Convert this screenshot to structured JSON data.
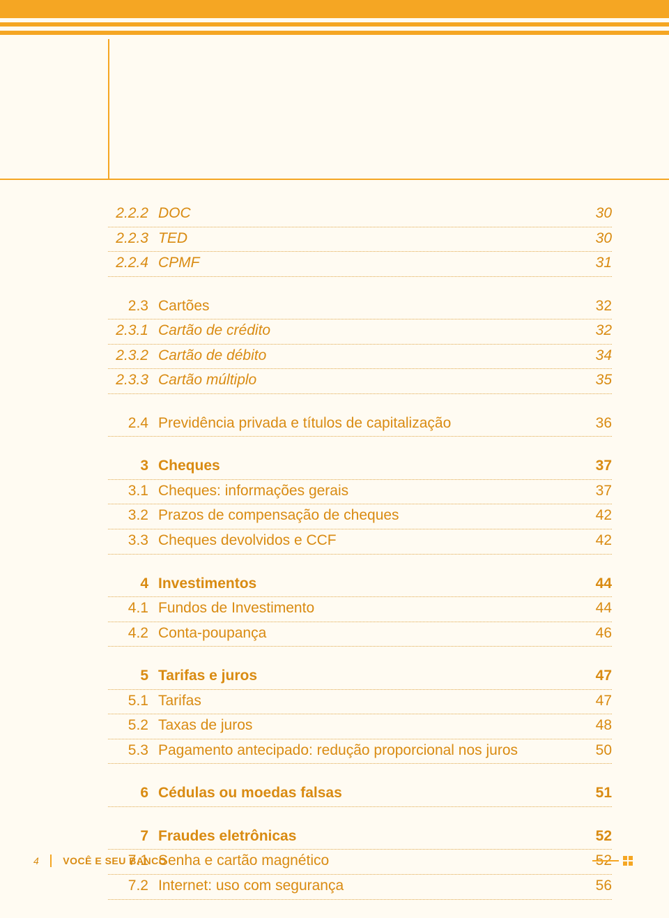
{
  "colors": {
    "accent": "#f5a623",
    "text": "#d98b12",
    "background": "#fffbf2"
  },
  "toc": {
    "groups": [
      [
        {
          "num": "2.2.2",
          "label": "DOC",
          "page": "30",
          "style": "italic"
        },
        {
          "num": "2.2.3",
          "label": "TED",
          "page": "30",
          "style": "italic"
        },
        {
          "num": "2.2.4",
          "label": "CPMF",
          "page": "31",
          "style": "italic"
        }
      ],
      [
        {
          "num": "2.3",
          "label": "Cartões",
          "page": "32",
          "style": "normal"
        },
        {
          "num": "2.3.1",
          "label": "Cartão de crédito",
          "page": "32",
          "style": "italic"
        },
        {
          "num": "2.3.2",
          "label": "Cartão de débito",
          "page": "34",
          "style": "italic"
        },
        {
          "num": "2.3.3",
          "label": "Cartão múltiplo",
          "page": "35",
          "style": "italic"
        }
      ],
      [
        {
          "num": "2.4",
          "label": "Previdência privada e títulos de capitalização",
          "page": "36",
          "style": "normal"
        }
      ],
      [
        {
          "num": "3",
          "label": "Cheques",
          "page": "37",
          "style": "bold"
        },
        {
          "num": "3.1",
          "label": "Cheques: informações gerais",
          "page": "37",
          "style": "normal"
        },
        {
          "num": "3.2",
          "label": "Prazos de compensação de cheques",
          "page": "42",
          "style": "normal"
        },
        {
          "num": "3.3",
          "label": "Cheques devolvidos e CCF",
          "page": "42",
          "style": "normal"
        }
      ],
      [
        {
          "num": "4",
          "label": "Investimentos",
          "page": "44",
          "style": "bold"
        },
        {
          "num": "4.1",
          "label": "Fundos de Investimento",
          "page": "44",
          "style": "normal"
        },
        {
          "num": "4.2",
          "label": "Conta-poupança",
          "page": "46",
          "style": "normal"
        }
      ],
      [
        {
          "num": "5",
          "label": "Tarifas e juros",
          "page": "47",
          "style": "bold"
        },
        {
          "num": "5.1",
          "label": "Tarifas",
          "page": "47",
          "style": "normal"
        },
        {
          "num": "5.2",
          "label": "Taxas de juros",
          "page": "48",
          "style": "normal"
        },
        {
          "num": "5.3",
          "label": "Pagamento antecipado: redução proporcional nos juros",
          "page": "50",
          "style": "normal"
        }
      ],
      [
        {
          "num": "6",
          "label": "Cédulas ou moedas falsas",
          "page": "51",
          "style": "bold"
        }
      ],
      [
        {
          "num": "7",
          "label": "Fraudes eletrônicas",
          "page": "52",
          "style": "bold"
        },
        {
          "num": "7.1",
          "label": "Senha e cartão magnético",
          "page": "52",
          "style": "normal"
        },
        {
          "num": "7.2",
          "label": "Internet: uso com segurança",
          "page": "56",
          "style": "normal"
        }
      ]
    ]
  },
  "footer": {
    "page_number": "4",
    "title": "VOCÊ E SEU BANCO"
  }
}
